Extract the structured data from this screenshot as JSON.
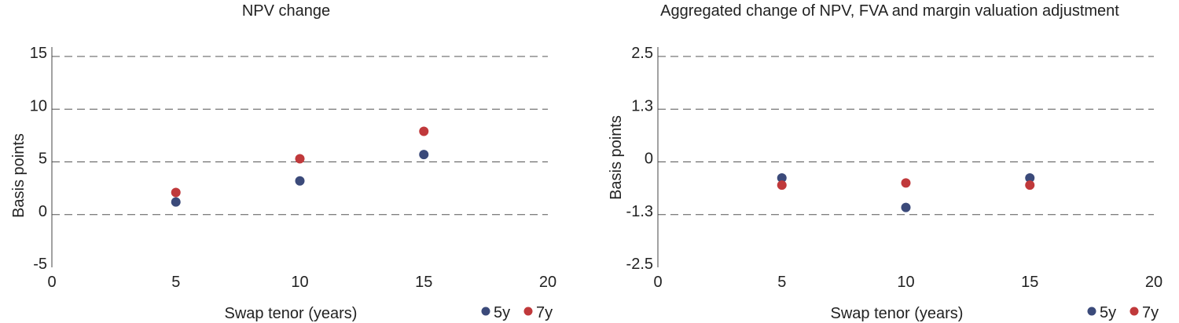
{
  "chart_data": [
    {
      "type": "scatter",
      "title": "NPV change",
      "xlabel": "Swap tenor (years)",
      "ylabel": "Basis points",
      "xlim": [
        0,
        20
      ],
      "ylim": [
        -5,
        15
      ],
      "xticks": [
        "0",
        "5",
        "10",
        "15",
        "20"
      ],
      "yticks": [
        "-5",
        "0",
        "5",
        "10",
        "15"
      ],
      "grid": true,
      "legend_position": "bottom-right",
      "series": [
        {
          "name": "5y",
          "color": "#3b4a7a",
          "x": [
            5,
            10,
            15
          ],
          "y": [
            1.2,
            3.2,
            5.7
          ]
        },
        {
          "name": "7y",
          "color": "#c0393b",
          "x": [
            5,
            10,
            15
          ],
          "y": [
            2.1,
            5.3,
            7.9
          ]
        }
      ]
    },
    {
      "type": "scatter",
      "title": "Aggregated change of NPV, FVA and margin valuation adjustment",
      "xlabel": "Swap tenor (years)",
      "ylabel": "Basis points",
      "xlim": [
        0,
        20
      ],
      "ylim": [
        -2.5,
        2.5
      ],
      "xticks": [
        "0",
        "5",
        "10",
        "15",
        "20"
      ],
      "yticks": [
        "-2.5",
        "-1.3",
        "0",
        "1.3",
        "2.5"
      ],
      "grid": true,
      "legend_position": "bottom-right",
      "series": [
        {
          "name": "5y",
          "color": "#3b4a7a",
          "x": [
            5,
            10,
            15
          ],
          "y": [
            -0.38,
            -1.08,
            -0.38
          ]
        },
        {
          "name": "7y",
          "color": "#c0393b",
          "x": [
            5,
            10,
            15
          ],
          "y": [
            -0.55,
            -0.5,
            -0.55
          ]
        }
      ]
    }
  ]
}
